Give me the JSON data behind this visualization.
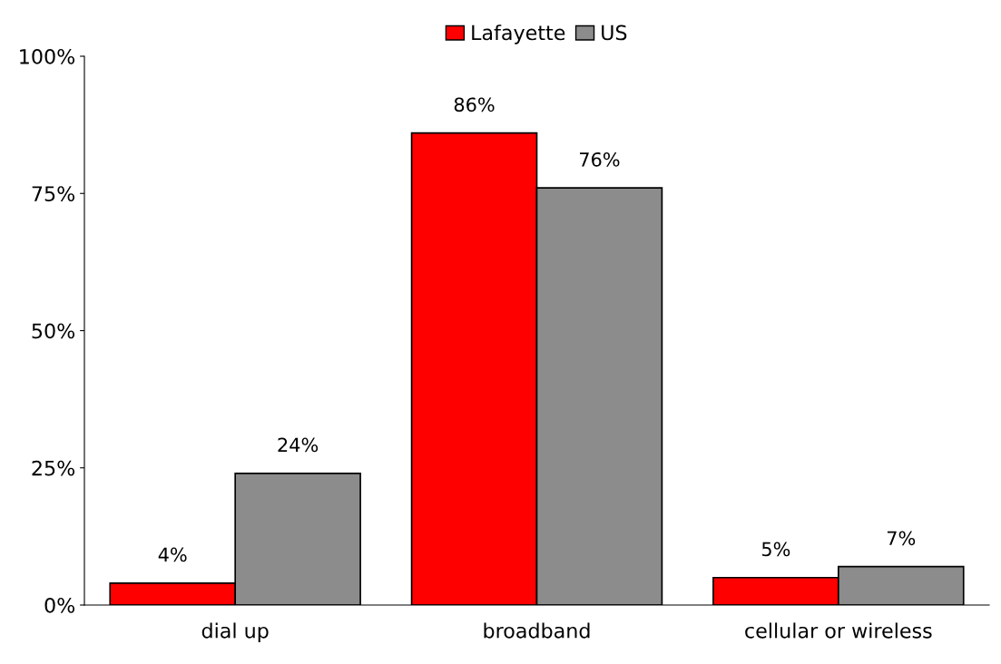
{
  "chart_data": {
    "type": "bar",
    "categories": [
      "dial up",
      "broadband",
      "cellular or wireless"
    ],
    "series": [
      {
        "name": "Lafayette",
        "color": "#ff0000",
        "values": [
          4,
          86,
          5
        ],
        "value_labels": [
          "4%",
          "86%",
          "5%"
        ]
      },
      {
        "name": "US",
        "color": "#8c8c8c",
        "values": [
          24,
          76,
          7
        ],
        "value_labels": [
          "24%",
          "76%",
          "7%"
        ]
      }
    ],
    "ylim": [
      0,
      100
    ],
    "yticks": [
      {
        "value": 0,
        "label": "0%"
      },
      {
        "value": 25,
        "label": "25%"
      },
      {
        "value": 50,
        "label": "50%"
      },
      {
        "value": 75,
        "label": "75%"
      },
      {
        "value": 100,
        "label": "100%"
      }
    ],
    "grid": false,
    "legend": "top"
  }
}
